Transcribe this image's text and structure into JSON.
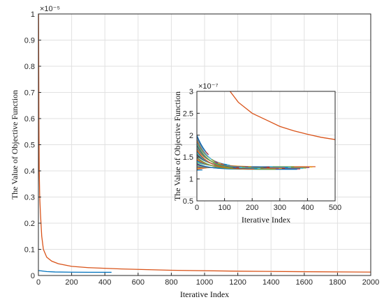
{
  "chart_data": [
    {
      "type": "line",
      "xlabel": "Iterative Index",
      "ylabel": "The Value of Objective Function",
      "exponent_label": "×10⁻⁵",
      "xlim": [
        0,
        2000
      ],
      "ylim": [
        0,
        1
      ],
      "xticks": [
        0,
        200,
        400,
        600,
        800,
        1000,
        1200,
        1400,
        1600,
        1800,
        2000
      ],
      "yticks": [
        0,
        0.1,
        0.2,
        0.3,
        0.4,
        0.5,
        0.6,
        0.7,
        0.8,
        0.9,
        1
      ],
      "grid": true,
      "series": [
        {
          "color": "#d95319",
          "x": [
            1,
            3,
            5,
            8,
            12,
            20,
            30,
            50,
            80,
            120,
            200,
            300,
            500,
            800,
            1200,
            1600,
            2000
          ],
          "y": [
            1.0,
            0.6,
            0.4,
            0.3,
            0.24,
            0.15,
            0.1,
            0.07,
            0.055,
            0.045,
            0.035,
            0.03,
            0.025,
            0.02,
            0.0165,
            0.0145,
            0.013
          ]
        },
        {
          "color": "#0072bd",
          "x": [
            0,
            50,
            100,
            200,
            300,
            440
          ],
          "y": [
            0.019,
            0.015,
            0.0135,
            0.0127,
            0.0124,
            0.0122
          ]
        }
      ]
    },
    {
      "type": "line",
      "xlabel": "Iterative Index",
      "ylabel": "The Value of Objective Function",
      "exponent_label": "×10⁻⁷",
      "xlim": [
        0,
        500
      ],
      "ylim": [
        0.5,
        3
      ],
      "xticks": [
        0,
        100,
        200,
        300,
        400,
        500
      ],
      "yticks": [
        0.5,
        1,
        1.5,
        2,
        2.5,
        3
      ],
      "grid": true,
      "series": [
        {
          "color": "#d95319",
          "x": [
            120,
            150,
            200,
            250,
            300,
            350,
            400,
            450,
            500
          ],
          "y": [
            3.0,
            2.75,
            2.5,
            2.35,
            2.2,
            2.1,
            2.02,
            1.95,
            1.9
          ]
        }
      ],
      "bundle": {
        "colors": [
          "#0072bd",
          "#d95319",
          "#edb120",
          "#7e2f8e",
          "#77ac30",
          "#4dbeee",
          "#a2142f",
          "#0072bd",
          "#77ac30",
          "#4dbeee"
        ],
        "x_end_range": [
          20,
          440
        ],
        "y_start_range": [
          1.2,
          2.0
        ],
        "y_end": 1.22
      }
    }
  ]
}
